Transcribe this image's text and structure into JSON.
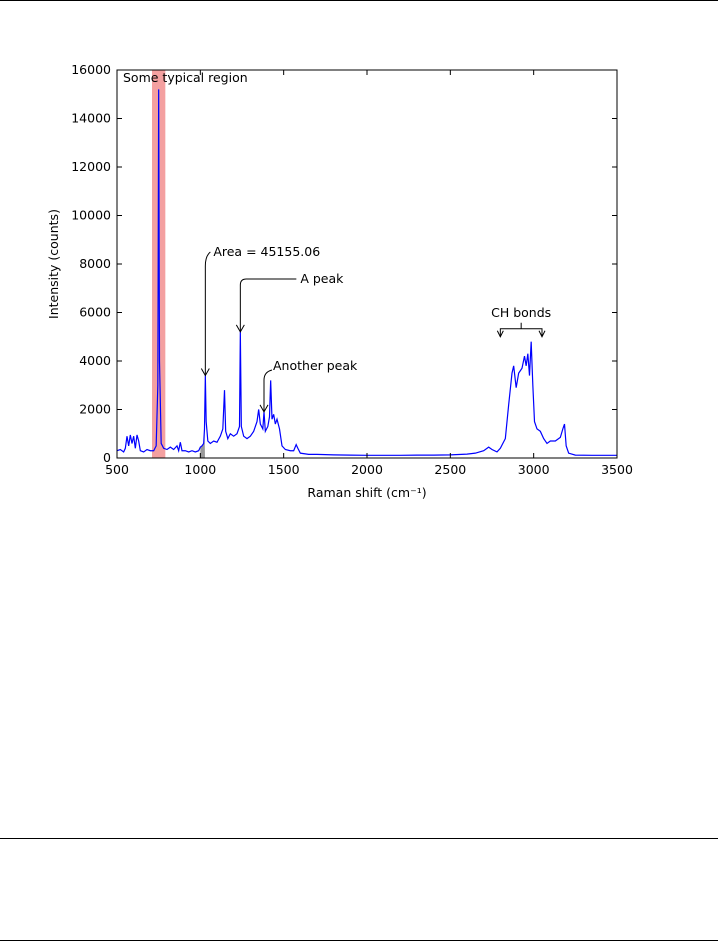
{
  "chart_data": {
    "type": "line",
    "xlabel": "Raman shift (cm⁻¹)",
    "ylabel": "Intensity (counts)",
    "xlim": [
      500,
      3500
    ],
    "ylim": [
      0,
      16000
    ],
    "xticks": [
      500,
      1000,
      1500,
      2000,
      2500,
      3000,
      3500
    ],
    "yticks": [
      0,
      2000,
      4000,
      6000,
      8000,
      10000,
      12000,
      14000,
      16000
    ],
    "grid": false,
    "x": [
      500,
      520,
      540,
      550,
      560,
      570,
      580,
      590,
      600,
      610,
      620,
      630,
      640,
      660,
      680,
      700,
      720,
      735,
      745,
      750,
      755,
      765,
      780,
      800,
      820,
      840,
      860,
      870,
      880,
      890,
      910,
      930,
      950,
      970,
      990,
      1000,
      1010,
      1020,
      1025,
      1030,
      1035,
      1045,
      1060,
      1080,
      1100,
      1120,
      1135,
      1145,
      1152,
      1165,
      1180,
      1200,
      1220,
      1235,
      1240,
      1246,
      1260,
      1280,
      1300,
      1320,
      1340,
      1350,
      1360,
      1375,
      1382,
      1390,
      1405,
      1415,
      1422,
      1430,
      1440,
      1450,
      1460,
      1475,
      1490,
      1510,
      1540,
      1560,
      1575,
      1585,
      1600,
      1650,
      1700,
      1800,
      1900,
      2000,
      2100,
      2200,
      2300,
      2400,
      2500,
      2600,
      2650,
      2700,
      2730,
      2750,
      2780,
      2800,
      2830,
      2850,
      2870,
      2880,
      2895,
      2910,
      2930,
      2945,
      2955,
      2965,
      2975,
      2985,
      2995,
      3005,
      3020,
      3040,
      3060,
      3080,
      3100,
      3130,
      3160,
      3175,
      3185,
      3195,
      3210,
      3250,
      3350,
      3450,
      3500
    ],
    "series": [
      {
        "color": "#0000ff",
        "values": [
          300,
          350,
          250,
          400,
          900,
          500,
          950,
          600,
          900,
          400,
          950,
          700,
          300,
          250,
          350,
          300,
          300,
          500,
          3000,
          15200,
          4000,
          600,
          400,
          350,
          450,
          350,
          500,
          300,
          650,
          300,
          300,
          250,
          300,
          250,
          300,
          450,
          500,
          600,
          1200,
          3400,
          1500,
          700,
          600,
          700,
          650,
          900,
          1200,
          2800,
          1100,
          800,
          1000,
          900,
          1000,
          1300,
          5200,
          1300,
          900,
          800,
          900,
          1100,
          1500,
          2000,
          1400,
          1200,
          1900,
          1100,
          1300,
          1700,
          3200,
          1600,
          1800,
          1400,
          1600,
          1200,
          500,
          350,
          300,
          300,
          550,
          400,
          200,
          150,
          150,
          130,
          120,
          110,
          110,
          110,
          120,
          120,
          130,
          160,
          200,
          300,
          450,
          350,
          250,
          400,
          800,
          2200,
          3500,
          3800,
          2900,
          3500,
          3700,
          4200,
          3800,
          4300,
          3400,
          4800,
          3000,
          1500,
          1200,
          1100,
          800,
          600,
          700,
          700,
          850,
          1200,
          1400,
          500,
          200,
          120,
          110,
          110,
          110
        ]
      }
    ],
    "spans": [
      {
        "xmin": 710,
        "xmax": 790,
        "color": "#f4a0a0",
        "style": "band"
      },
      {
        "xmin": 1000,
        "xmax": 1028,
        "color": "#999999",
        "style": "under"
      }
    ],
    "annotations": [
      {
        "text": "Some typical region"
      },
      {
        "text": "Area = 45155.06",
        "x": 1030,
        "y": 3400
      },
      {
        "text": "A peak",
        "x": 1240,
        "y": 5200
      },
      {
        "text": "Another peak",
        "x": 1382,
        "y": 1900
      },
      {
        "text": "CH bonds",
        "x": [
          2800,
          3050
        ],
        "y": 5000
      }
    ]
  }
}
